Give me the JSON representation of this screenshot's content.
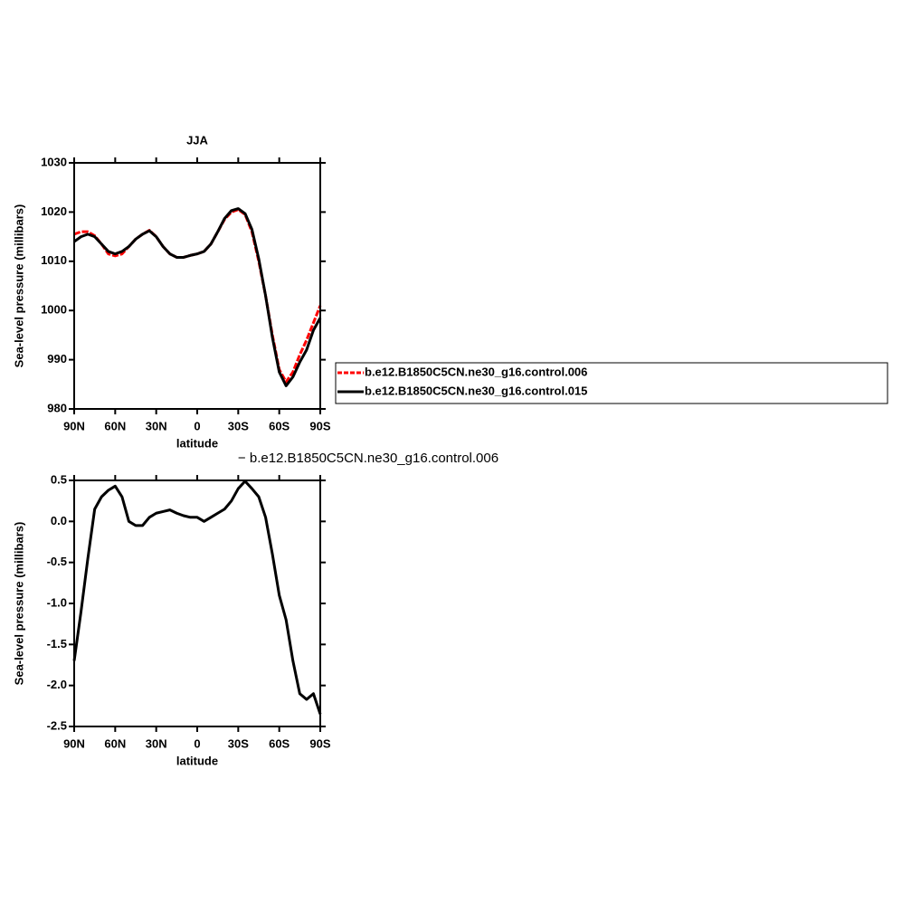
{
  "chart_data": [
    {
      "type": "line",
      "title": "JJA",
      "xlabel": "latitude",
      "ylabel": "Sea-level pressure (millibars)",
      "x": [
        90,
        85,
        80,
        75,
        70,
        65,
        60,
        55,
        50,
        45,
        40,
        35,
        30,
        25,
        20,
        15,
        10,
        5,
        0,
        -5,
        -10,
        -15,
        -20,
        -25,
        -30,
        -35,
        -40,
        -45,
        -50,
        -55,
        -60,
        -65,
        -70,
        -75,
        -80,
        -85,
        -90
      ],
      "series": [
        {
          "name": "b.e12.B1850C5CN.ne30_g16.control.006",
          "color": "#ff0000",
          "dashed": true,
          "values": [
            1015.5,
            1016,
            1016,
            1015.2,
            1013.5,
            1011.5,
            1011.1,
            1011.5,
            1013,
            1014.5,
            1015.5,
            1016.3,
            1015,
            1013,
            1011.5,
            1010.8,
            1010.8,
            1011.2,
            1011.5,
            1012,
            1013.5,
            1016,
            1018.5,
            1020,
            1020.5,
            1019.5,
            1016,
            1010,
            1003,
            995,
            988,
            985.5,
            987.5,
            991,
            994,
            997.5,
            1001
          ]
        },
        {
          "name": "b.e12.B1850C5CN.ne30_g16.control.015",
          "color": "#000000",
          "dashed": false,
          "values": [
            1014,
            1015,
            1015.5,
            1015,
            1013.5,
            1012,
            1011.5,
            1012,
            1013,
            1014.5,
            1015.5,
            1016.2,
            1015,
            1013,
            1011.5,
            1010.8,
            1010.8,
            1011.2,
            1011.5,
            1012,
            1013.5,
            1016,
            1018.7,
            1020.3,
            1020.7,
            1019.7,
            1016.5,
            1010.5,
            1003,
            994.5,
            987.5,
            984.7,
            986.5,
            989.5,
            992,
            996,
            998.5
          ]
        }
      ],
      "xlim": [
        90,
        -90
      ],
      "xticks": [
        {
          "value": 90,
          "label": "90N"
        },
        {
          "value": 60,
          "label": "60N"
        },
        {
          "value": 30,
          "label": "30N"
        },
        0,
        {
          "value": -30,
          "label": "30S"
        },
        {
          "value": -60,
          "label": "60S"
        },
        {
          "value": -90,
          "label": "90S"
        }
      ],
      "ylim": [
        980,
        1030
      ],
      "yticks": [
        980,
        990,
        1000,
        1010,
        1020,
        1030
      ]
    },
    {
      "type": "line",
      "title": "− b.e12.B1850C5CN.ne30_g16.control.006",
      "xlabel": "latitude",
      "ylabel": "Sea-level pressure (millibars)",
      "x": [
        90,
        85,
        80,
        75,
        70,
        65,
        60,
        55,
        50,
        45,
        40,
        35,
        30,
        25,
        20,
        15,
        10,
        5,
        0,
        -5,
        -10,
        -15,
        -20,
        -25,
        -30,
        -35,
        -40,
        -45,
        -50,
        -55,
        -60,
        -65,
        -70,
        -75,
        -80,
        -85,
        -90
      ],
      "color": "#000000",
      "values": [
        -1.7,
        -1.1,
        -0.45,
        0.15,
        0.3,
        0.38,
        0.43,
        0.3,
        0,
        -0.05,
        -0.05,
        0.05,
        0.1,
        0.12,
        0.14,
        0.1,
        0.07,
        0.05,
        0.05,
        0,
        0.05,
        0.1,
        0.15,
        0.25,
        0.4,
        0.49,
        0.4,
        0.3,
        0.05,
        -0.4,
        -0.9,
        -1.2,
        -1.7,
        -2.1,
        -2.17,
        -2.1,
        -2.35
      ],
      "xlim": [
        90,
        -90
      ],
      "xticks": [
        {
          "value": 90,
          "label": "90N"
        },
        {
          "value": 60,
          "label": "60N"
        },
        {
          "value": 30,
          "label": "30N"
        },
        0,
        {
          "value": -30,
          "label": "30S"
        },
        {
          "value": -60,
          "label": "60S"
        },
        {
          "value": -90,
          "label": "90S"
        }
      ],
      "ylim": [
        -2.5,
        0.5
      ],
      "yticks": [
        {
          "value": -2.5,
          "label": "-2.5"
        },
        {
          "value": -2,
          "label": "-2.0"
        },
        {
          "value": -1.5,
          "label": "-1.5"
        },
        {
          "value": -1,
          "label": "-1.0"
        },
        -0.5,
        {
          "value": 0,
          "label": "0.0"
        },
        0.5
      ]
    }
  ]
}
